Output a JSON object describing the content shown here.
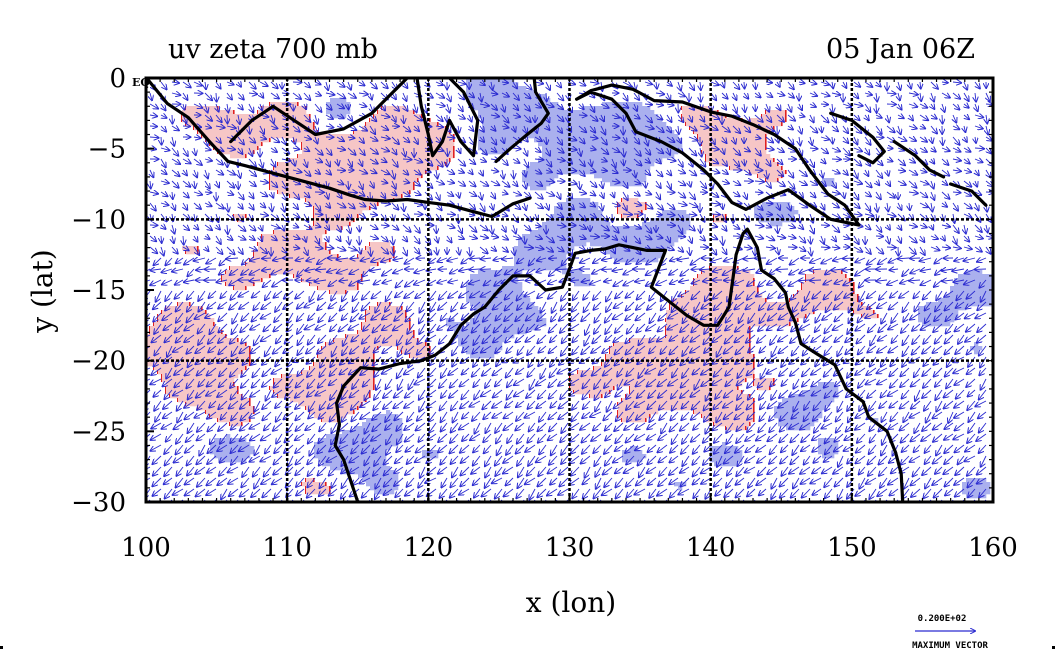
{
  "chart_data": {
    "type": "map",
    "title_left": "uv zeta 700 mb",
    "title_right": "05 Jan 06Z",
    "xlabel": "x (lon)",
    "ylabel": "y (lat)",
    "xlim": [
      100,
      160
    ],
    "ylim": [
      -30,
      0
    ],
    "x_ticks": [
      100,
      110,
      120,
      130,
      140,
      150,
      160
    ],
    "y_ticks": [
      0,
      -5,
      -10,
      -15,
      -20,
      -25,
      -30
    ],
    "x_tick_labels": [
      "100",
      "110",
      "120",
      "130",
      "140",
      "150",
      "160"
    ],
    "y_tick_labels": [
      "0",
      "−5",
      "−10",
      "−15",
      "−20",
      "−25",
      "−30"
    ],
    "corner_label": "EQ",
    "grid_lon": [
      110,
      120,
      130,
      140,
      150
    ],
    "grid_lat": [
      -10,
      -20
    ],
    "vector_legend": {
      "value": "0.200E+02",
      "label": "MAXIMUM VECTOR"
    },
    "colors": {
      "positive_fill": "#f6c6c6",
      "positive_line": "#e02020",
      "negative_fill": "#aab0ee",
      "vector": "#2a2ad0",
      "coast": "#000000"
    },
    "coastlines": [
      [
        [
          100.2,
          -0.2
        ],
        [
          101.5,
          -1.8
        ],
        [
          103,
          -2.8
        ],
        [
          104.5,
          -4.5
        ],
        [
          105.8,
          -5.9
        ],
        [
          107,
          -6.2
        ],
        [
          108.5,
          -6.6
        ],
        [
          110,
          -7
        ],
        [
          111.5,
          -7.4
        ],
        [
          113,
          -7.8
        ],
        [
          114.5,
          -8.3
        ],
        [
          115.5,
          -8.6
        ],
        [
          117,
          -8.7
        ],
        [
          118.5,
          -8.6
        ],
        [
          120,
          -8.8
        ],
        [
          121.5,
          -9
        ],
        [
          123,
          -9.4
        ],
        [
          124.5,
          -9.8
        ],
        [
          126,
          -8.9
        ],
        [
          127.2,
          -8.5
        ]
      ],
      [
        [
          106,
          -4.5
        ],
        [
          107.5,
          -3
        ],
        [
          109,
          -2
        ],
        [
          110.5,
          -3
        ],
        [
          112,
          -4
        ],
        [
          114,
          -3.6
        ],
        [
          116,
          -2.5
        ],
        [
          117.5,
          -1
        ],
        [
          118.5,
          0
        ]
      ],
      [
        [
          119.2,
          0
        ],
        [
          119.5,
          -2
        ],
        [
          120,
          -4
        ],
        [
          120.3,
          -5.5
        ],
        [
          121,
          -4.5
        ],
        [
          121.5,
          -3
        ],
        [
          122.3,
          -4.5
        ],
        [
          123.2,
          -5.5
        ],
        [
          123.5,
          -3
        ],
        [
          122.5,
          -1
        ],
        [
          121.5,
          0
        ]
      ],
      [
        [
          124.8,
          -5.9
        ],
        [
          125.8,
          -5
        ],
        [
          127,
          -4
        ],
        [
          128,
          -3.2
        ],
        [
          128.5,
          -2.5
        ],
        [
          127.6,
          -1
        ],
        [
          127.5,
          0
        ]
      ],
      [
        [
          130.5,
          -1.5
        ],
        [
          131.5,
          -1
        ],
        [
          133,
          -1.5
        ],
        [
          134,
          -2.5
        ],
        [
          134.7,
          -3.8
        ],
        [
          136.5,
          -4.5
        ],
        [
          138,
          -5.3
        ],
        [
          139.5,
          -6.5
        ],
        [
          140.5,
          -7.5
        ],
        [
          141.5,
          -8.8
        ],
        [
          142.5,
          -9.3
        ],
        [
          144,
          -8.5
        ],
        [
          145.5,
          -7.9
        ],
        [
          147,
          -9
        ],
        [
          148.5,
          -10
        ],
        [
          150.5,
          -10.4
        ],
        [
          149.5,
          -9
        ],
        [
          148.3,
          -8.2
        ],
        [
          147,
          -6.5
        ],
        [
          146,
          -5
        ],
        [
          144.5,
          -4
        ],
        [
          143,
          -3.3
        ],
        [
          141.5,
          -2.7
        ],
        [
          140,
          -2.4
        ],
        [
          138,
          -1.7
        ],
        [
          136,
          -1.6
        ],
        [
          134.5,
          -0.8
        ],
        [
          133,
          -0.5
        ],
        [
          131.5,
          -0.9
        ],
        [
          130.5,
          -1.5
        ]
      ],
      [
        [
          148.5,
          -2.5
        ],
        [
          150,
          -3
        ],
        [
          151.5,
          -4.2
        ],
        [
          152.3,
          -5.2
        ],
        [
          151.5,
          -6
        ],
        [
          150.5,
          -5.5
        ]
      ],
      [
        [
          153,
          -4.5
        ],
        [
          154.5,
          -5.5
        ],
        [
          155.5,
          -6.5
        ],
        [
          156.5,
          -7
        ]
      ],
      [
        [
          157,
          -7.5
        ],
        [
          158.5,
          -8
        ],
        [
          159.5,
          -9
        ]
      ],
      [
        [
          114,
          -21.8
        ],
        [
          115.2,
          -20.5
        ],
        [
          116.5,
          -20.6
        ],
        [
          118,
          -20.2
        ],
        [
          119.5,
          -20
        ],
        [
          120.5,
          -19.6
        ],
        [
          121.5,
          -18.8
        ],
        [
          122.3,
          -17.5
        ],
        [
          123.2,
          -16.7
        ],
        [
          124,
          -16.2
        ],
        [
          125,
          -15
        ],
        [
          126,
          -14
        ],
        [
          127.2,
          -14
        ],
        [
          128.3,
          -15
        ],
        [
          129.5,
          -14.8
        ],
        [
          130,
          -13.5
        ],
        [
          130.4,
          -12.4
        ],
        [
          131.5,
          -12.2
        ],
        [
          132.5,
          -12.1
        ],
        [
          133.5,
          -11.8
        ],
        [
          134.5,
          -12
        ],
        [
          135.5,
          -12.2
        ],
        [
          136.8,
          -12.2
        ],
        [
          136.3,
          -13.5
        ],
        [
          135.8,
          -14.8
        ],
        [
          136.8,
          -15.6
        ],
        [
          138.3,
          -16.8
        ],
        [
          139.5,
          -17.5
        ],
        [
          140.5,
          -17.5
        ],
        [
          141.3,
          -16.2
        ],
        [
          141.6,
          -14
        ],
        [
          141.8,
          -12.5
        ],
        [
          142.3,
          -11
        ],
        [
          142.6,
          -10.7
        ],
        [
          143.3,
          -12
        ],
        [
          143.6,
          -13.6
        ],
        [
          144.5,
          -14.2
        ],
        [
          145.3,
          -15.2
        ],
        [
          145.5,
          -16.2
        ],
        [
          146,
          -17.3
        ],
        [
          146.4,
          -18.8
        ],
        [
          147.5,
          -19.5
        ],
        [
          148.8,
          -20.3
        ],
        [
          149.6,
          -22
        ],
        [
          150.8,
          -22.9
        ],
        [
          151.2,
          -24
        ],
        [
          152.5,
          -25
        ],
        [
          153.1,
          -26.5
        ],
        [
          153.5,
          -28
        ],
        [
          153.6,
          -30
        ]
      ],
      [
        [
          114,
          -21.8
        ],
        [
          113.5,
          -23
        ],
        [
          113.7,
          -24.5
        ],
        [
          113.4,
          -26
        ],
        [
          114,
          -27
        ],
        [
          114.5,
          -28.5
        ],
        [
          115,
          -30
        ]
      ]
    ]
  }
}
